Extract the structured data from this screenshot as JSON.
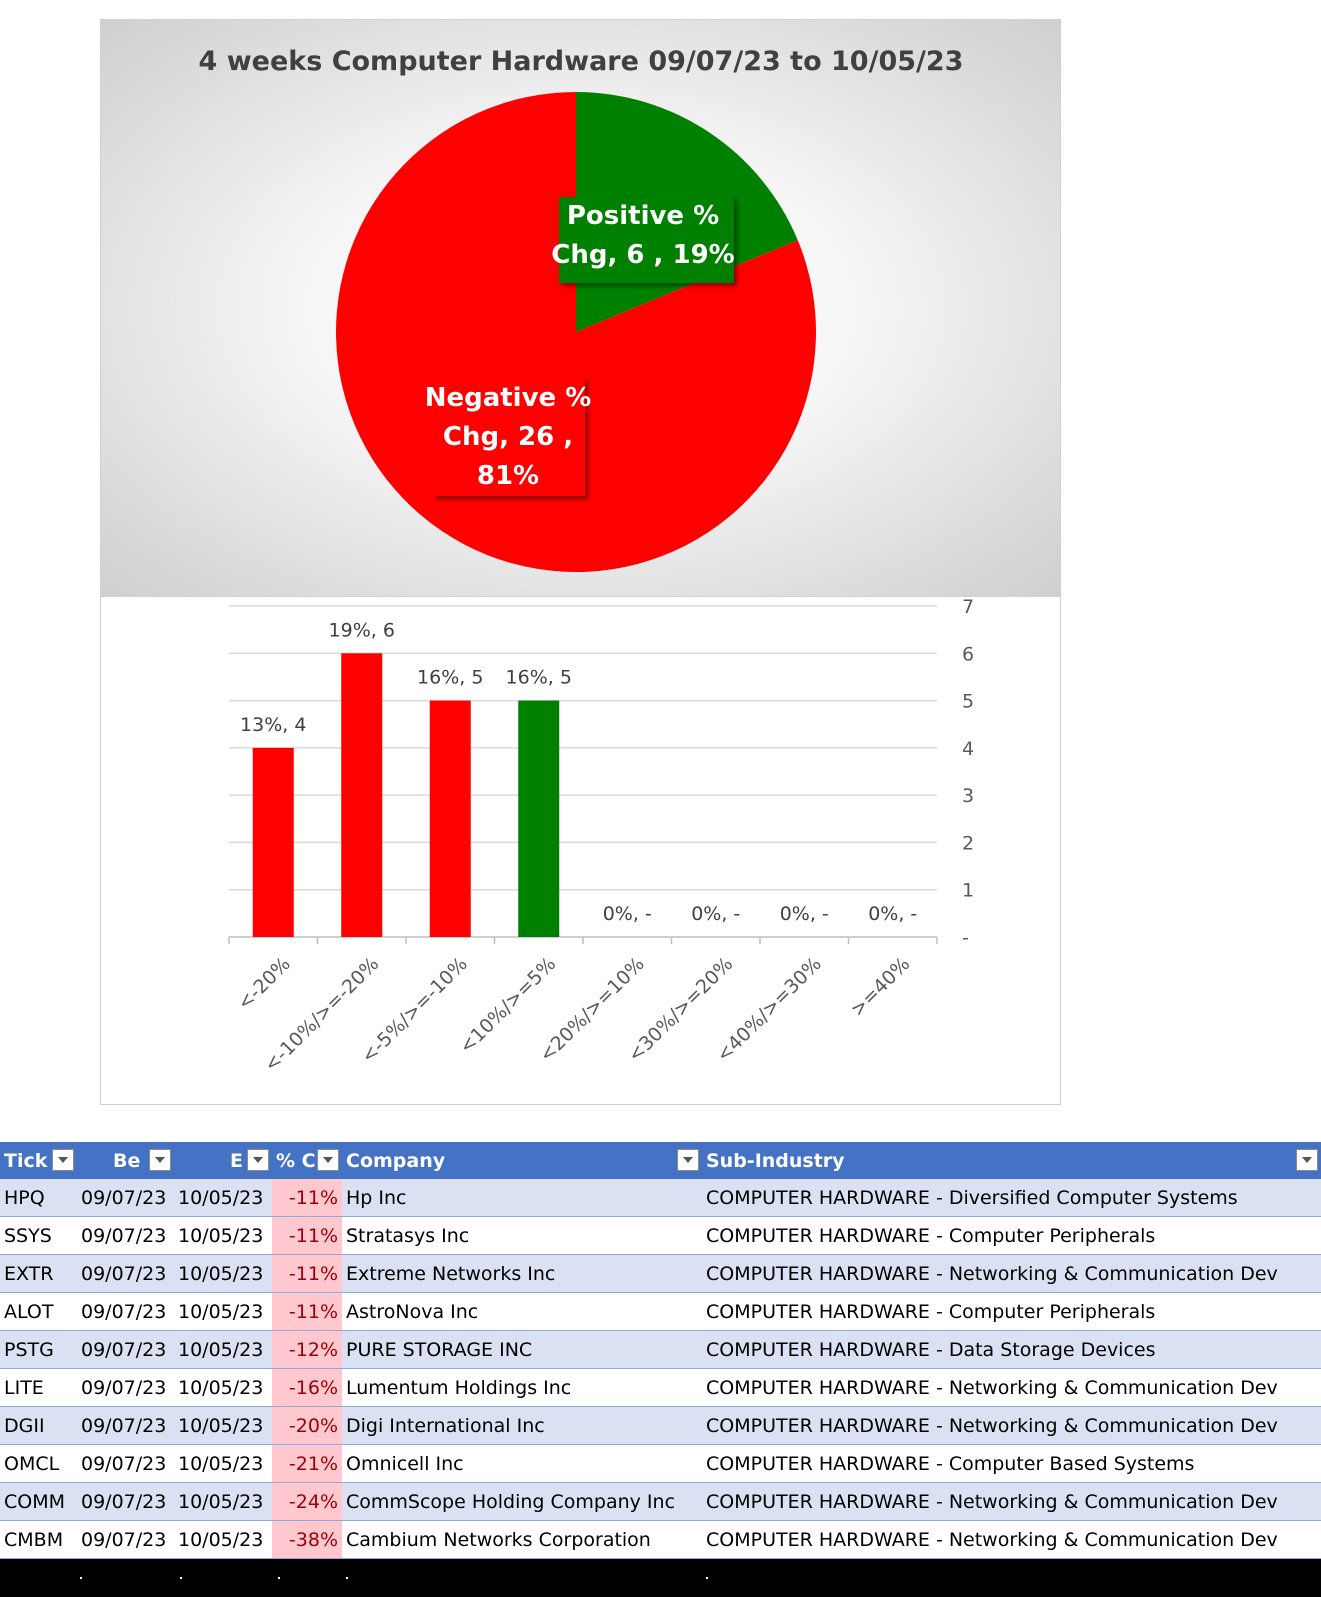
{
  "chart_data": [
    {
      "type": "pie",
      "title": "4 weeks Computer Hardware 09/07/23 to 10/05/23",
      "slices": [
        {
          "label_line1": "Positive %",
          "label_line2": "Chg,  6 , 19%",
          "label_line3": "",
          "value": 6,
          "percent": 19,
          "color": "#008000"
        },
        {
          "label_line1": "Negative %",
          "label_line2": "Chg,  26 ,",
          "label_line3": "81%",
          "value": 26,
          "percent": 81,
          "color": "#ff0000"
        }
      ]
    },
    {
      "type": "bar",
      "categories": [
        "<-20%",
        "<-10%/>=-20%",
        "<-5%/>=-10%",
        "<10%/>=5%",
        "<20%/>=10%",
        "<30%/>=20%",
        "<40%/>=30%",
        ">=40%"
      ],
      "values": [
        4,
        6,
        5,
        5,
        0,
        0,
        0,
        0
      ],
      "data_labels": [
        "13%,  4",
        "19%,  6",
        "16%,  5",
        "16%,  5",
        "0%,  -",
        "0%,  -",
        "0%,  -",
        "0%,  -"
      ],
      "colors": [
        "#ff0000",
        "#ff0000",
        "#ff0000",
        "#008000",
        "#ff0000",
        "#ff0000",
        "#ff0000",
        "#ff0000"
      ],
      "ylim": [
        0,
        7
      ],
      "yticks": [
        "-",
        "1",
        "2",
        "3",
        "4",
        "5",
        "6",
        "7"
      ],
      "y_axis_side": "right",
      "grid": true
    }
  ],
  "table": {
    "headers": [
      "Tick",
      "Be",
      "E",
      "% C",
      "Company",
      "Sub-Industry"
    ],
    "rows": [
      [
        "HPQ",
        "09/07/23",
        "10/05/23",
        "-11%",
        "Hp Inc",
        "COMPUTER HARDWARE - Diversified Computer Systems"
      ],
      [
        "SSYS",
        "09/07/23",
        "10/05/23",
        "-11%",
        "Stratasys Inc",
        "COMPUTER HARDWARE - Computer Peripherals"
      ],
      [
        "EXTR",
        "09/07/23",
        "10/05/23",
        "-11%",
        "Extreme Networks Inc",
        "COMPUTER HARDWARE - Networking & Communication Dev"
      ],
      [
        "ALOT",
        "09/07/23",
        "10/05/23",
        "-11%",
        "AstroNova Inc",
        "COMPUTER HARDWARE - Computer Peripherals"
      ],
      [
        "PSTG",
        "09/07/23",
        "10/05/23",
        "-12%",
        "PURE STORAGE INC",
        "COMPUTER HARDWARE - Data Storage Devices"
      ],
      [
        "LITE",
        "09/07/23",
        "10/05/23",
        "-16%",
        "Lumentum Holdings Inc",
        "COMPUTER HARDWARE - Networking & Communication Dev"
      ],
      [
        "DGII",
        "09/07/23",
        "10/05/23",
        "-20%",
        "Digi International Inc",
        "COMPUTER HARDWARE - Networking & Communication Dev"
      ],
      [
        "OMCL",
        "09/07/23",
        "10/05/23",
        "-21%",
        "Omnicell Inc",
        "COMPUTER HARDWARE - Computer Based Systems"
      ],
      [
        "COMM",
        "09/07/23",
        "10/05/23",
        "-24%",
        "CommScope Holding Company Inc",
        "COMPUTER HARDWARE - Networking & Communication Dev"
      ],
      [
        "CMBM",
        "09/07/23",
        "10/05/23",
        "-38%",
        "Cambium Networks Corporation",
        "COMPUTER HARDWARE - Networking & Communication Dev"
      ]
    ]
  }
}
